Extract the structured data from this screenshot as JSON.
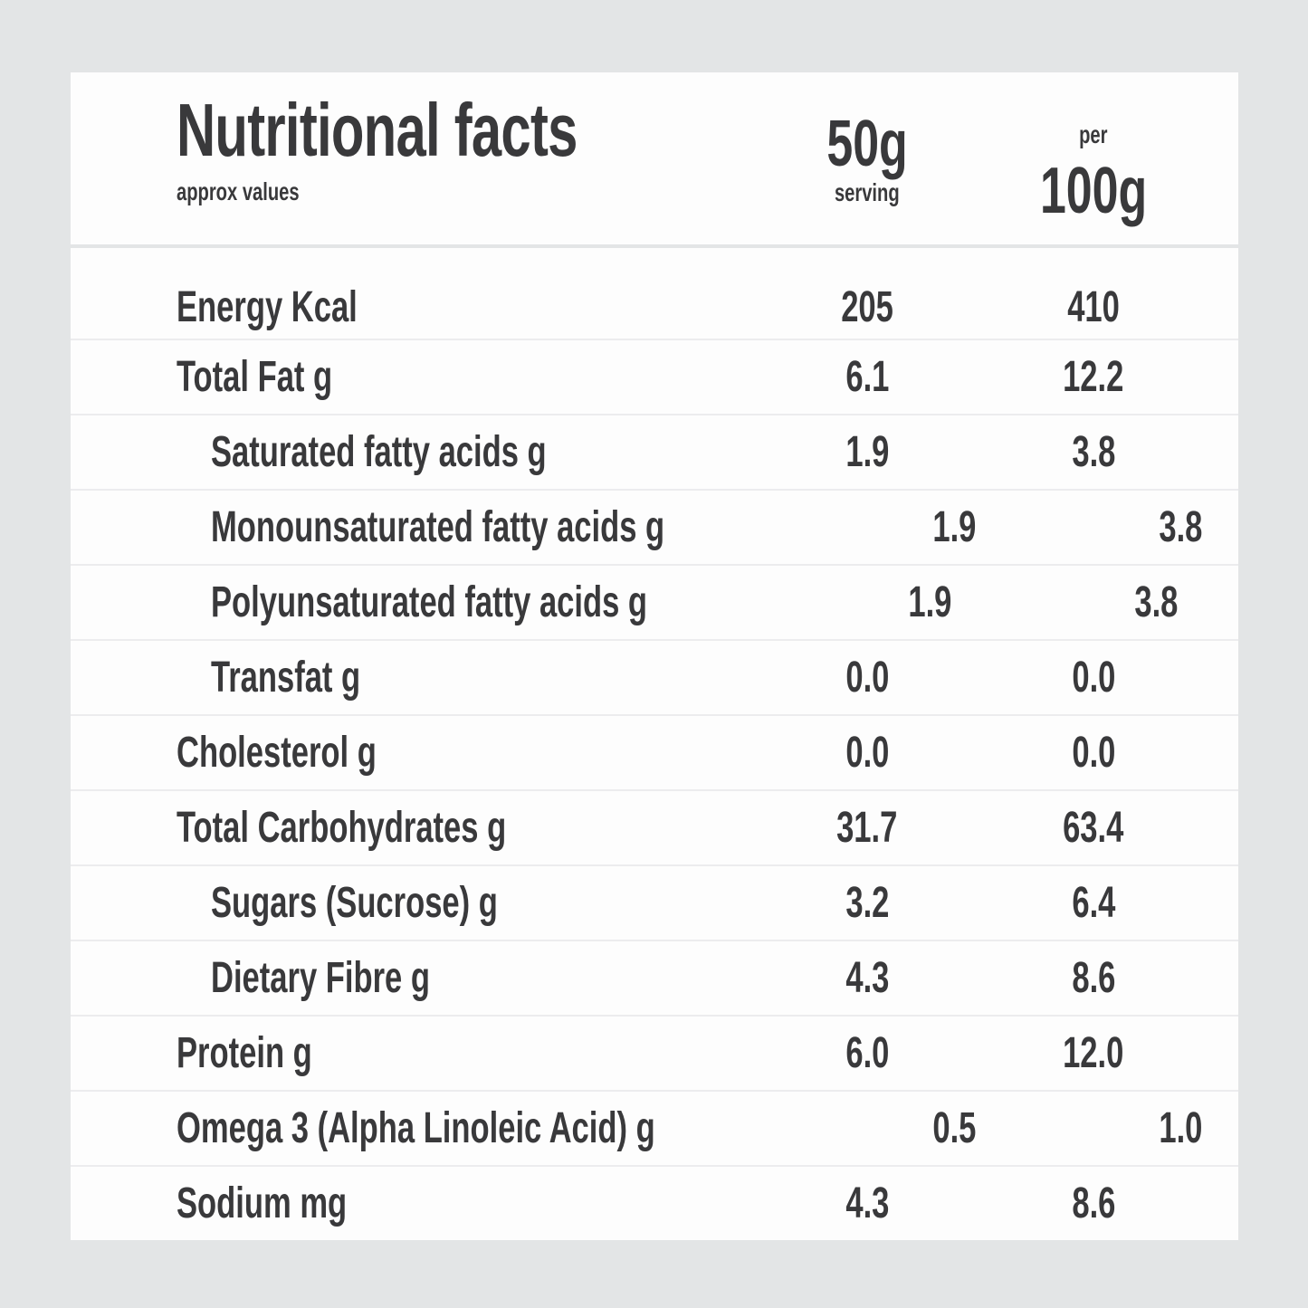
{
  "page": {
    "background_color": "#e3e5e6",
    "card_color": "#fdfdfd",
    "text_color": "#39393b",
    "row_divider_color": "#ececee"
  },
  "header": {
    "title": "Nutritional facts",
    "subtitle": "approx values",
    "serving_column": {
      "line1": "50g",
      "line2": "serving"
    },
    "per100_column": {
      "line1": "per",
      "line2": "100g"
    }
  },
  "rows": [
    {
      "label": "Energy Kcal",
      "indent": false,
      "serving": "205",
      "per100": "410"
    },
    {
      "label": "Total Fat g",
      "indent": false,
      "serving": "6.1",
      "per100": "12.2"
    },
    {
      "label": "Saturated fatty acids g",
      "indent": true,
      "serving": "1.9",
      "per100": "3.8"
    },
    {
      "label": "Monounsaturated fatty acids g",
      "indent": true,
      "serving": "1.9",
      "per100": "3.8"
    },
    {
      "label": "Polyunsaturated fatty acids g",
      "indent": true,
      "serving": "1.9",
      "per100": "3.8"
    },
    {
      "label": "Transfat g",
      "indent": true,
      "serving": "0.0",
      "per100": "0.0"
    },
    {
      "label": "Cholesterol g",
      "indent": false,
      "serving": "0.0",
      "per100": "0.0"
    },
    {
      "label": "Total Carbohydrates g",
      "indent": false,
      "serving": "31.7",
      "per100": "63.4"
    },
    {
      "label": "Sugars (Sucrose) g",
      "indent": true,
      "serving": "3.2",
      "per100": "6.4"
    },
    {
      "label": "Dietary Fibre g",
      "indent": true,
      "serving": "4.3",
      "per100": "8.6"
    },
    {
      "label": "Protein g",
      "indent": false,
      "serving": "6.0",
      "per100": "12.0"
    },
    {
      "label": "Omega 3 (Alpha Linoleic Acid) g",
      "indent": false,
      "serving": "0.5",
      "per100": "1.0"
    },
    {
      "label": "Sodium mg",
      "indent": false,
      "serving": "4.3",
      "per100": "8.6"
    }
  ]
}
